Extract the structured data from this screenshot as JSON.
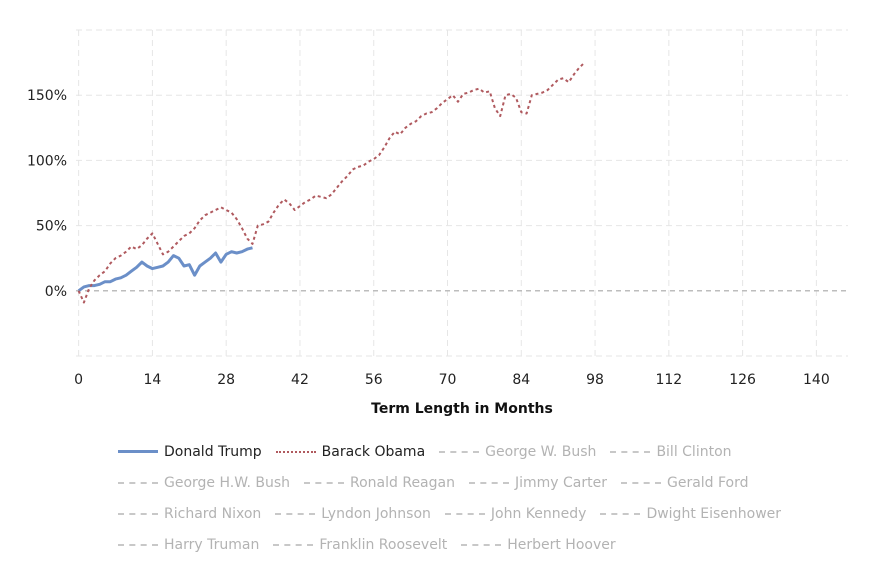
{
  "chart_data": {
    "type": "line",
    "title": "",
    "xlabel": "Term Length in Months",
    "ylabel": "",
    "x_ticks": [
      0,
      14,
      28,
      42,
      56,
      70,
      84,
      98,
      112,
      126,
      140
    ],
    "y_ticks": [
      0,
      50,
      100,
      150
    ],
    "y_tick_labels": [
      "0%",
      "50%",
      "100%",
      "150%"
    ],
    "xlim": [
      -0.5,
      146
    ],
    "ylim": [
      -50,
      200
    ],
    "grid": true,
    "legend_position": "bottom",
    "series": [
      {
        "name": "Donald Trump",
        "color": "#6b8fc8",
        "style": "solid",
        "active": true,
        "x": [
          0,
          1,
          2,
          3,
          4,
          5,
          6,
          7,
          8,
          9,
          10,
          11,
          12,
          13,
          14,
          15,
          16,
          17,
          18,
          19,
          20,
          21,
          22,
          23,
          24,
          25,
          26,
          27,
          28,
          29,
          30,
          31,
          32,
          33
        ],
        "y": [
          0,
          3,
          4,
          4,
          5,
          7,
          7,
          9,
          10,
          12,
          15,
          18,
          22,
          19,
          17,
          18,
          19,
          22,
          27,
          25,
          19,
          20,
          12,
          19,
          22,
          25,
          29,
          22,
          28,
          30,
          29,
          30,
          32,
          33
        ]
      },
      {
        "name": "Barack Obama",
        "color": "#b05a5f",
        "style": "dotted",
        "active": true,
        "x": [
          0,
          1,
          2,
          3,
          4,
          5,
          6,
          7,
          8,
          9,
          10,
          11,
          12,
          13,
          14,
          15,
          16,
          17,
          18,
          19,
          20,
          21,
          22,
          23,
          24,
          25,
          26,
          27,
          28,
          29,
          30,
          31,
          32,
          33,
          34,
          35,
          36,
          37,
          38,
          39,
          40,
          41,
          42,
          43,
          44,
          45,
          46,
          47,
          48,
          49,
          50,
          51,
          52,
          53,
          54,
          55,
          56,
          57,
          58,
          59,
          60,
          61,
          62,
          63,
          64,
          65,
          66,
          67,
          68,
          69,
          70,
          71,
          72,
          73,
          74,
          75,
          76,
          77,
          78,
          79,
          80,
          81,
          82,
          83,
          84,
          85,
          86,
          87,
          88,
          89,
          90,
          91,
          92,
          93,
          94,
          95,
          96
        ],
        "y": [
          0,
          -9,
          2,
          8,
          12,
          15,
          21,
          25,
          27,
          30,
          34,
          32,
          35,
          40,
          44,
          36,
          28,
          30,
          34,
          38,
          42,
          44,
          48,
          54,
          58,
          60,
          62,
          64,
          62,
          60,
          55,
          48,
          40,
          36,
          50,
          51,
          53,
          60,
          66,
          70,
          67,
          62,
          65,
          68,
          70,
          73,
          72,
          71,
          74,
          79,
          84,
          88,
          93,
          95,
          96,
          99,
          101,
          104,
          110,
          117,
          122,
          120,
          125,
          128,
          130,
          134,
          136,
          137,
          140,
          144,
          147,
          150,
          145,
          151,
          152,
          154,
          155,
          152,
          153,
          140,
          134,
          150,
          151,
          148,
          137,
          136,
          150,
          151,
          152,
          154,
          158,
          162,
          163,
          160,
          166,
          171,
          175
        ]
      },
      {
        "name": "George W. Bush",
        "active": false
      },
      {
        "name": "Bill Clinton",
        "active": false
      },
      {
        "name": "George H.W. Bush",
        "active": false
      },
      {
        "name": "Ronald Reagan",
        "active": false
      },
      {
        "name": "Jimmy Carter",
        "active": false
      },
      {
        "name": "Gerald Ford",
        "active": false
      },
      {
        "name": "Richard Nixon",
        "active": false
      },
      {
        "name": "Lyndon Johnson",
        "active": false
      },
      {
        "name": "John Kennedy",
        "active": false
      },
      {
        "name": "Dwight Eisenhower",
        "active": false
      },
      {
        "name": "Harry Truman",
        "active": false
      },
      {
        "name": "Franklin Roosevelt",
        "active": false
      },
      {
        "name": "Herbert Hoover",
        "active": false
      }
    ]
  }
}
